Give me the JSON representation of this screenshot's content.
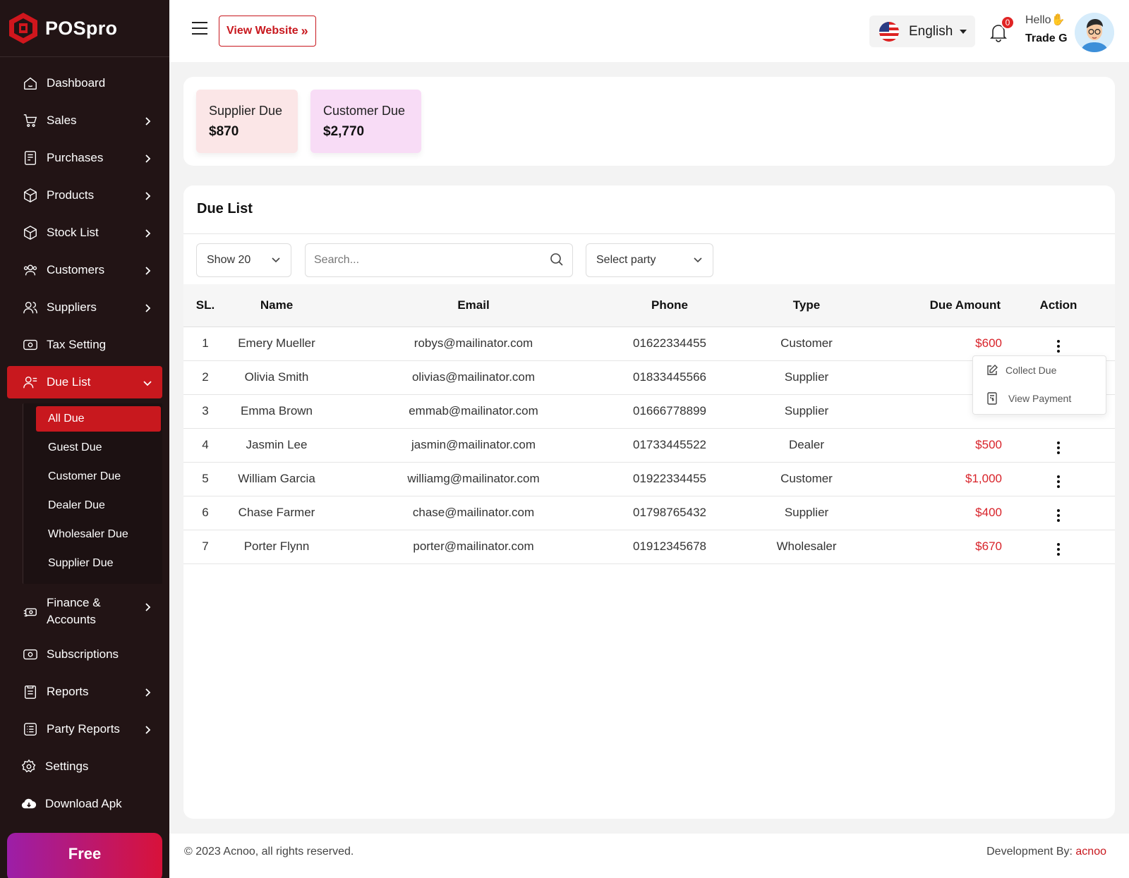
{
  "brand": {
    "name": "POSpro",
    "accent": "#c8181e"
  },
  "sidebar": {
    "items": [
      {
        "label": "Dashboard",
        "icon": "home-icon",
        "chevron": false
      },
      {
        "label": "Sales",
        "icon": "cart-icon",
        "chevron": true
      },
      {
        "label": "Purchases",
        "icon": "receipt-icon",
        "chevron": true
      },
      {
        "label": "Products",
        "icon": "box-icon",
        "chevron": true
      },
      {
        "label": "Stock List",
        "icon": "box-icon",
        "chevron": true
      },
      {
        "label": "Customers",
        "icon": "users-icon",
        "chevron": true
      },
      {
        "label": "Suppliers",
        "icon": "user-group-icon",
        "chevron": true
      },
      {
        "label": "Tax Setting",
        "icon": "money-icon",
        "chevron": false
      },
      {
        "label": "Due List",
        "icon": "user-list-icon",
        "chevron": true,
        "expanded": true,
        "active": true
      },
      {
        "label": "Finance & Accounts",
        "icon": "cash-icon",
        "chevron": true
      },
      {
        "label": "Subscriptions",
        "icon": "money-icon",
        "chevron": false
      },
      {
        "label": "Reports",
        "icon": "document-icon",
        "chevron": true
      },
      {
        "label": "Party Reports",
        "icon": "list-icon",
        "chevron": true
      },
      {
        "label": "Settings",
        "icon": "gear-icon",
        "chevron": false
      },
      {
        "label": "Download Apk",
        "icon": "cloud-download-icon",
        "chevron": false
      }
    ],
    "due_submenu": [
      "All Due",
      "Guest Due",
      "Customer Due",
      "Dealer Due",
      "Wholesaler Due",
      "Supplier Due"
    ],
    "active_submenu": "All Due",
    "free_button": "Free"
  },
  "header": {
    "view_website": "View Website",
    "language": "English",
    "notification_count": "0",
    "greeting": "Hello",
    "username": "Trade G"
  },
  "summary": {
    "supplier_due_label": "Supplier Due",
    "supplier_due_value": "$870",
    "customer_due_label": "Customer Due",
    "customer_due_value": "$2,770"
  },
  "due_list": {
    "title": "Due List",
    "show_label": "Show 20",
    "search_placeholder": "Search...",
    "party_placeholder": "Select party",
    "columns": [
      "SL.",
      "Name",
      "Email",
      "Phone",
      "Type",
      "Due Amount",
      "Action"
    ],
    "rows": [
      {
        "sl": "1",
        "name": "Emery Mueller",
        "email": "robys@mailinator.com",
        "phone": "01622334455",
        "type": "Customer",
        "due": "$600"
      },
      {
        "sl": "2",
        "name": "Olivia Smith",
        "email": "olivias@mailinator.com",
        "phone": "01833445566",
        "type": "Supplier",
        "due": ""
      },
      {
        "sl": "3",
        "name": "Emma Brown",
        "email": "emmab@mailinator.com",
        "phone": "01666778899",
        "type": "Supplier",
        "due": ""
      },
      {
        "sl": "4",
        "name": "Jasmin Lee",
        "email": "jasmin@mailinator.com",
        "phone": "01733445522",
        "type": "Dealer",
        "due": "$500"
      },
      {
        "sl": "5",
        "name": "William Garcia",
        "email": "williamg@mailinator.com",
        "phone": "01922334455",
        "type": "Customer",
        "due": "$1,000"
      },
      {
        "sl": "6",
        "name": "Chase Farmer",
        "email": "chase@mailinator.com",
        "phone": "01798765432",
        "type": "Supplier",
        "due": "$400"
      },
      {
        "sl": "7",
        "name": "Porter Flynn",
        "email": "porter@mailinator.com",
        "phone": "01912345678",
        "type": "Wholesaler",
        "due": "$670"
      }
    ],
    "action_menu": [
      "Collect Due",
      "View Payment"
    ]
  },
  "footer": {
    "copyright": "© 2023 Acnoo, all rights reserved.",
    "dev_label": "Development By:",
    "dev_link": "acnoo"
  }
}
